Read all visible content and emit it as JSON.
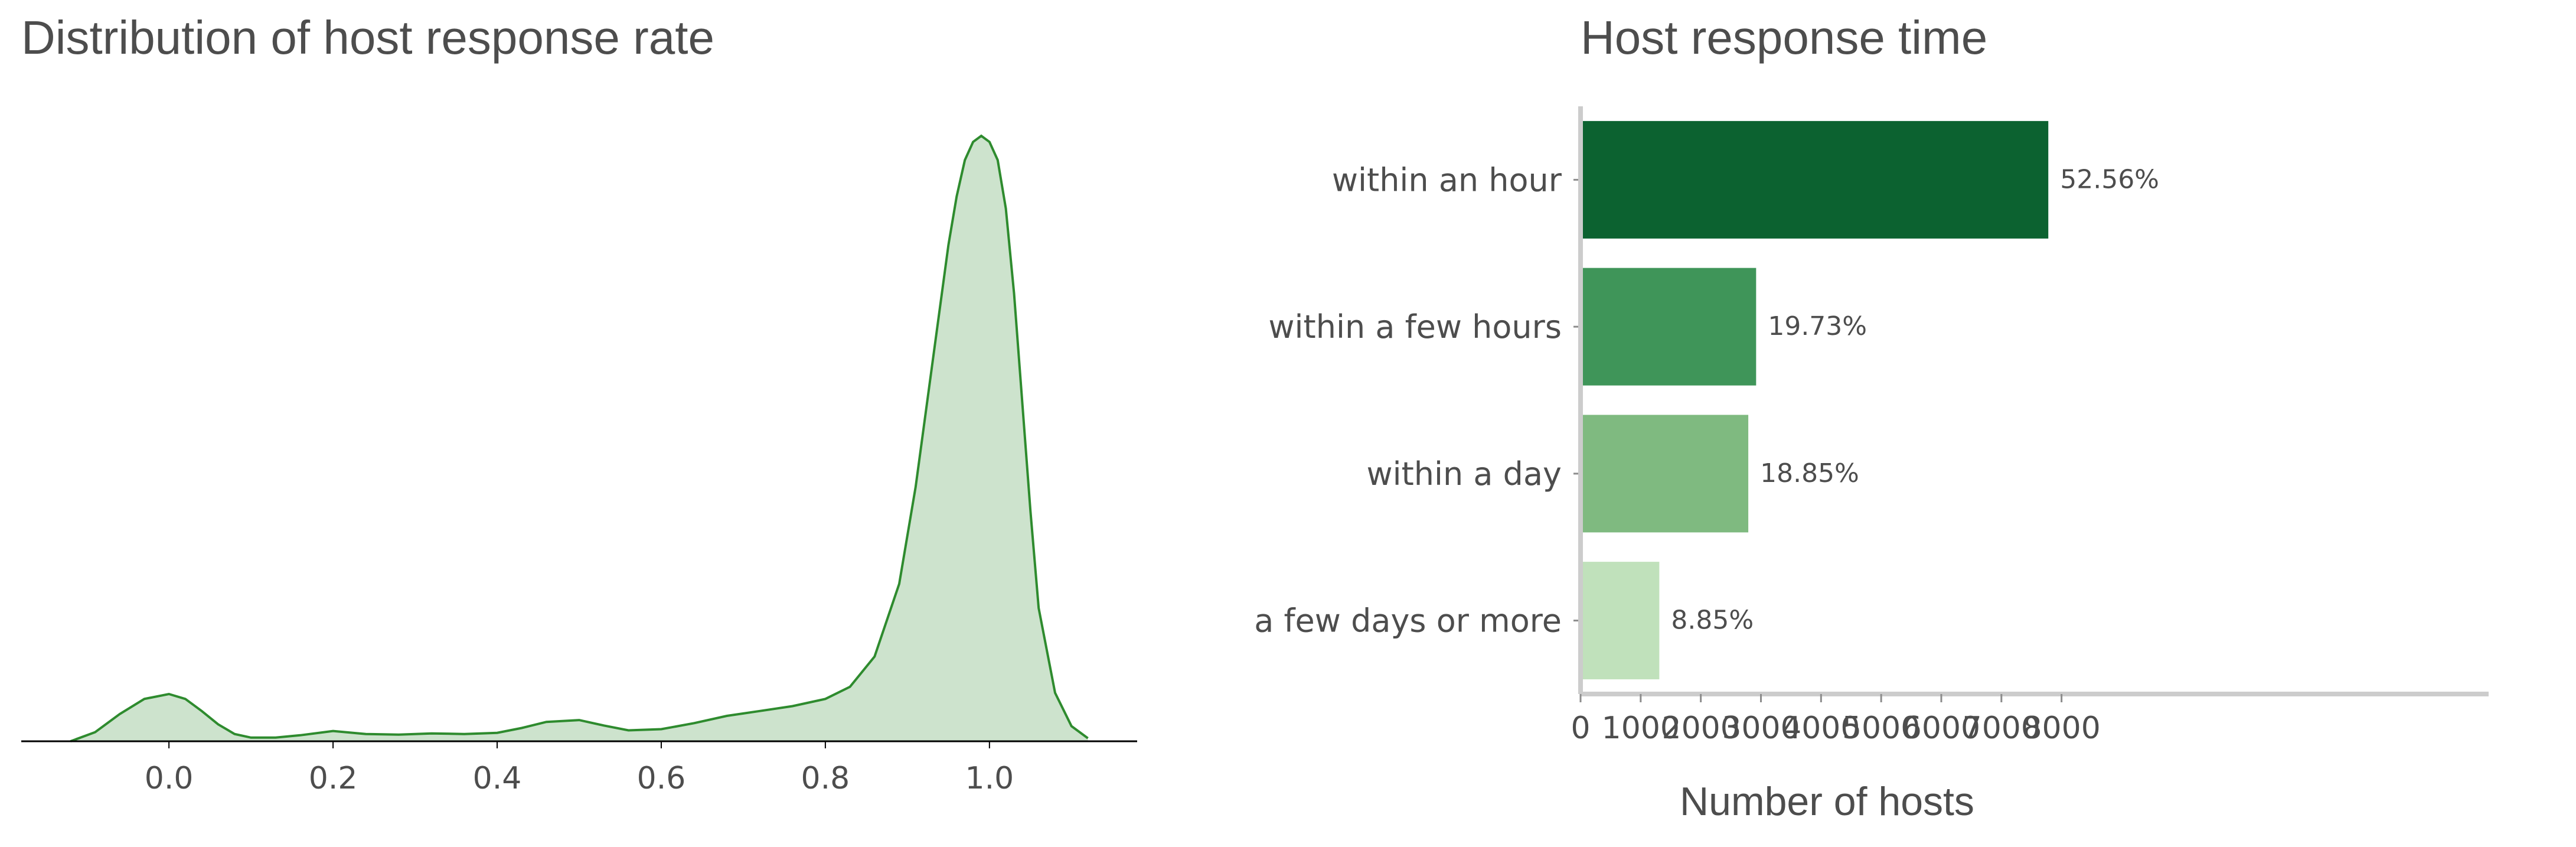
{
  "chart_data": [
    {
      "type": "area",
      "title": "Distribution of host response rate",
      "xlabel": "",
      "ylabel": "",
      "xlim": [
        -0.18,
        1.18
      ],
      "ylim": [
        0,
        1.0
      ],
      "x_ticks": [
        "0.0",
        "0.2",
        "0.4",
        "0.6",
        "0.8",
        "1.0"
      ],
      "grid": false,
      "colors": {
        "line": "#2e8b2e",
        "fill": "#cde3cd",
        "axis": "#000000"
      },
      "series": [
        {
          "x": [
            -0.12,
            -0.09,
            -0.06,
            -0.03,
            0.0,
            0.02,
            0.04,
            0.06,
            0.08,
            0.1,
            0.13,
            0.16,
            0.2,
            0.24,
            0.28,
            0.32,
            0.36,
            0.4,
            0.43,
            0.46,
            0.5,
            0.53,
            0.56,
            0.6,
            0.64,
            0.68,
            0.72,
            0.76,
            0.8,
            0.83,
            0.86,
            0.89,
            0.91,
            0.93,
            0.95,
            0.96,
            0.97,
            0.98,
            0.99,
            1.0,
            1.01,
            1.02,
            1.03,
            1.04,
            1.05,
            1.06,
            1.08,
            1.1,
            1.12
          ],
          "y": [
            0.0,
            0.015,
            0.045,
            0.07,
            0.078,
            0.07,
            0.05,
            0.028,
            0.012,
            0.006,
            0.006,
            0.01,
            0.017,
            0.012,
            0.011,
            0.013,
            0.012,
            0.014,
            0.022,
            0.032,
            0.035,
            0.026,
            0.018,
            0.02,
            0.03,
            0.042,
            0.05,
            0.058,
            0.07,
            0.09,
            0.14,
            0.26,
            0.42,
            0.62,
            0.82,
            0.9,
            0.96,
            0.99,
            1.0,
            0.99,
            0.96,
            0.88,
            0.74,
            0.56,
            0.38,
            0.22,
            0.08,
            0.025,
            0.005
          ]
        }
      ]
    },
    {
      "type": "bar",
      "orientation": "horizontal",
      "title": "Host response time",
      "xlabel": "Number of hosts",
      "ylabel": "",
      "xlim": [
        0,
        8200
      ],
      "x_ticks": [
        "0",
        "1000",
        "2000",
        "3000",
        "4000",
        "5000",
        "6000",
        "7000",
        "8000"
      ],
      "grid": false,
      "categories": [
        "within an hour",
        "within a few hours",
        "within a day",
        "a few days or more"
      ],
      "values": [
        7780,
        2920,
        2790,
        1310
      ],
      "labels": [
        "52.56%",
        "19.73%",
        "18.85%",
        "8.85%"
      ],
      "colors": [
        "#0c6230",
        "#3f9559",
        "#7fba80",
        "#c0e1bb"
      ]
    }
  ]
}
